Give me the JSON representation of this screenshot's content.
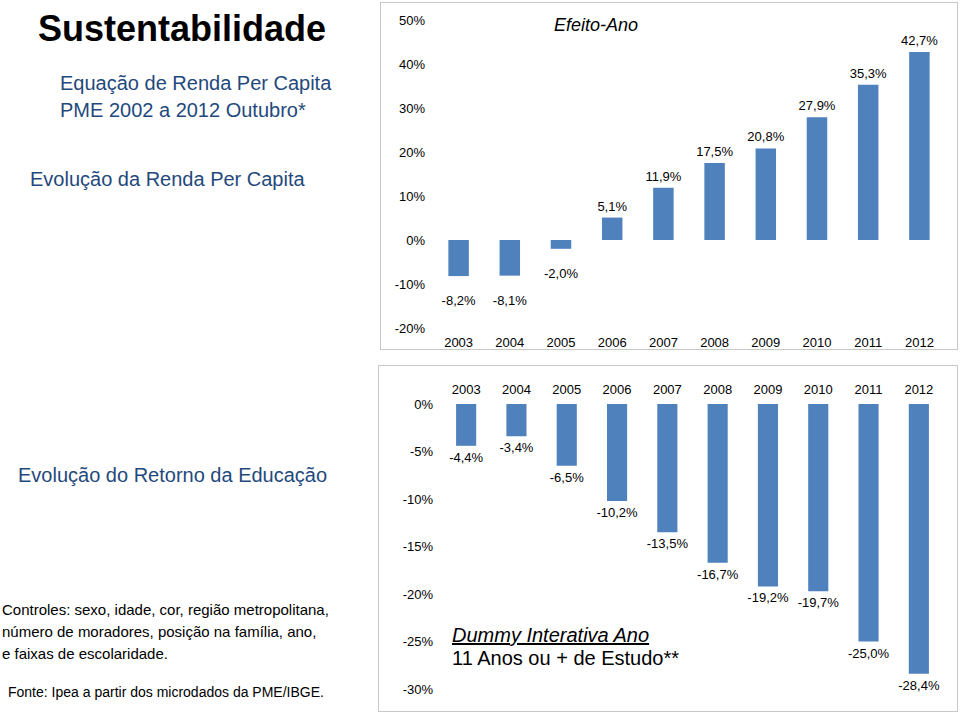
{
  "slide": {
    "title": "Sustentabilidade",
    "subtitle": [
      "Equação de Renda Per Capita",
      "PME 2002 a 2012 Outubro*"
    ],
    "chart_labels": [
      "Evolução da Renda Per Capita",
      "Evolução do Retorno da Educação"
    ],
    "notes": [
      "Controles: sexo, idade, cor, região metropolitana,",
      "número de moradores, posição na família, ano,",
      "e faixas  de escolaridade."
    ],
    "source": "Fonte: Ipea a partir dos microdados da PME/IBGE."
  },
  "chart_data": [
    {
      "type": "bar",
      "title": "Efeito-Ano",
      "categories": [
        "2003",
        "2004",
        "2005",
        "2006",
        "2007",
        "2008",
        "2009",
        "2010",
        "2011",
        "2012"
      ],
      "values": [
        -8.2,
        -8.1,
        -2.0,
        5.1,
        11.9,
        17.5,
        20.8,
        27.9,
        35.3,
        42.7
      ],
      "value_labels": [
        "-8,2%",
        "-8,1%",
        "-2,0%",
        "5,1%",
        "11,9%",
        "17,5%",
        "20,8%",
        "27,9%",
        "35,3%",
        "42,7%"
      ],
      "color": "#4f81bd",
      "ylim": [
        -20,
        50
      ],
      "yticks": [
        {
          "value": -20,
          "label": "-20%"
        },
        {
          "value": -10,
          "label": "-10%"
        },
        {
          "value": 0,
          "label": "0%"
        },
        {
          "value": 10,
          "label": "10%"
        },
        {
          "value": 20,
          "label": "20%"
        },
        {
          "value": 30,
          "label": "30%"
        },
        {
          "value": 40,
          "label": "40%"
        },
        {
          "value": 50,
          "label": "50%"
        }
      ],
      "grid": false,
      "data_labels": true
    },
    {
      "type": "bar",
      "categories": [
        "2003",
        "2004",
        "2005",
        "2006",
        "2007",
        "2008",
        "2009",
        "2010",
        "2011",
        "2012"
      ],
      "values": [
        -4.4,
        -3.4,
        -6.5,
        -10.2,
        -13.5,
        -16.7,
        -19.2,
        -19.7,
        -25.0,
        -28.4
      ],
      "value_labels": [
        "-4,4%",
        "-3,4%",
        "-6,5%",
        "-10,2%",
        "-13,5%",
        "-16,7%",
        "-19,2%",
        "-19,7%",
        "-25,0%",
        "-28,4%"
      ],
      "color": "#4f81bd",
      "ylim": [
        -30,
        0
      ],
      "yticks": [
        {
          "value": -30,
          "label": "-30%"
        },
        {
          "value": -25,
          "label": "-25%"
        },
        {
          "value": -20,
          "label": "-20%"
        },
        {
          "value": -15,
          "label": "-15%"
        },
        {
          "value": -10,
          "label": "-10%"
        },
        {
          "value": -5,
          "label": "-5%"
        },
        {
          "value": 0,
          "label": "0%"
        }
      ],
      "annotations": [
        "Dummy  Interativa  Ano",
        "11 Anos ou + de Estudo**"
      ],
      "grid": false,
      "data_labels": true
    }
  ]
}
